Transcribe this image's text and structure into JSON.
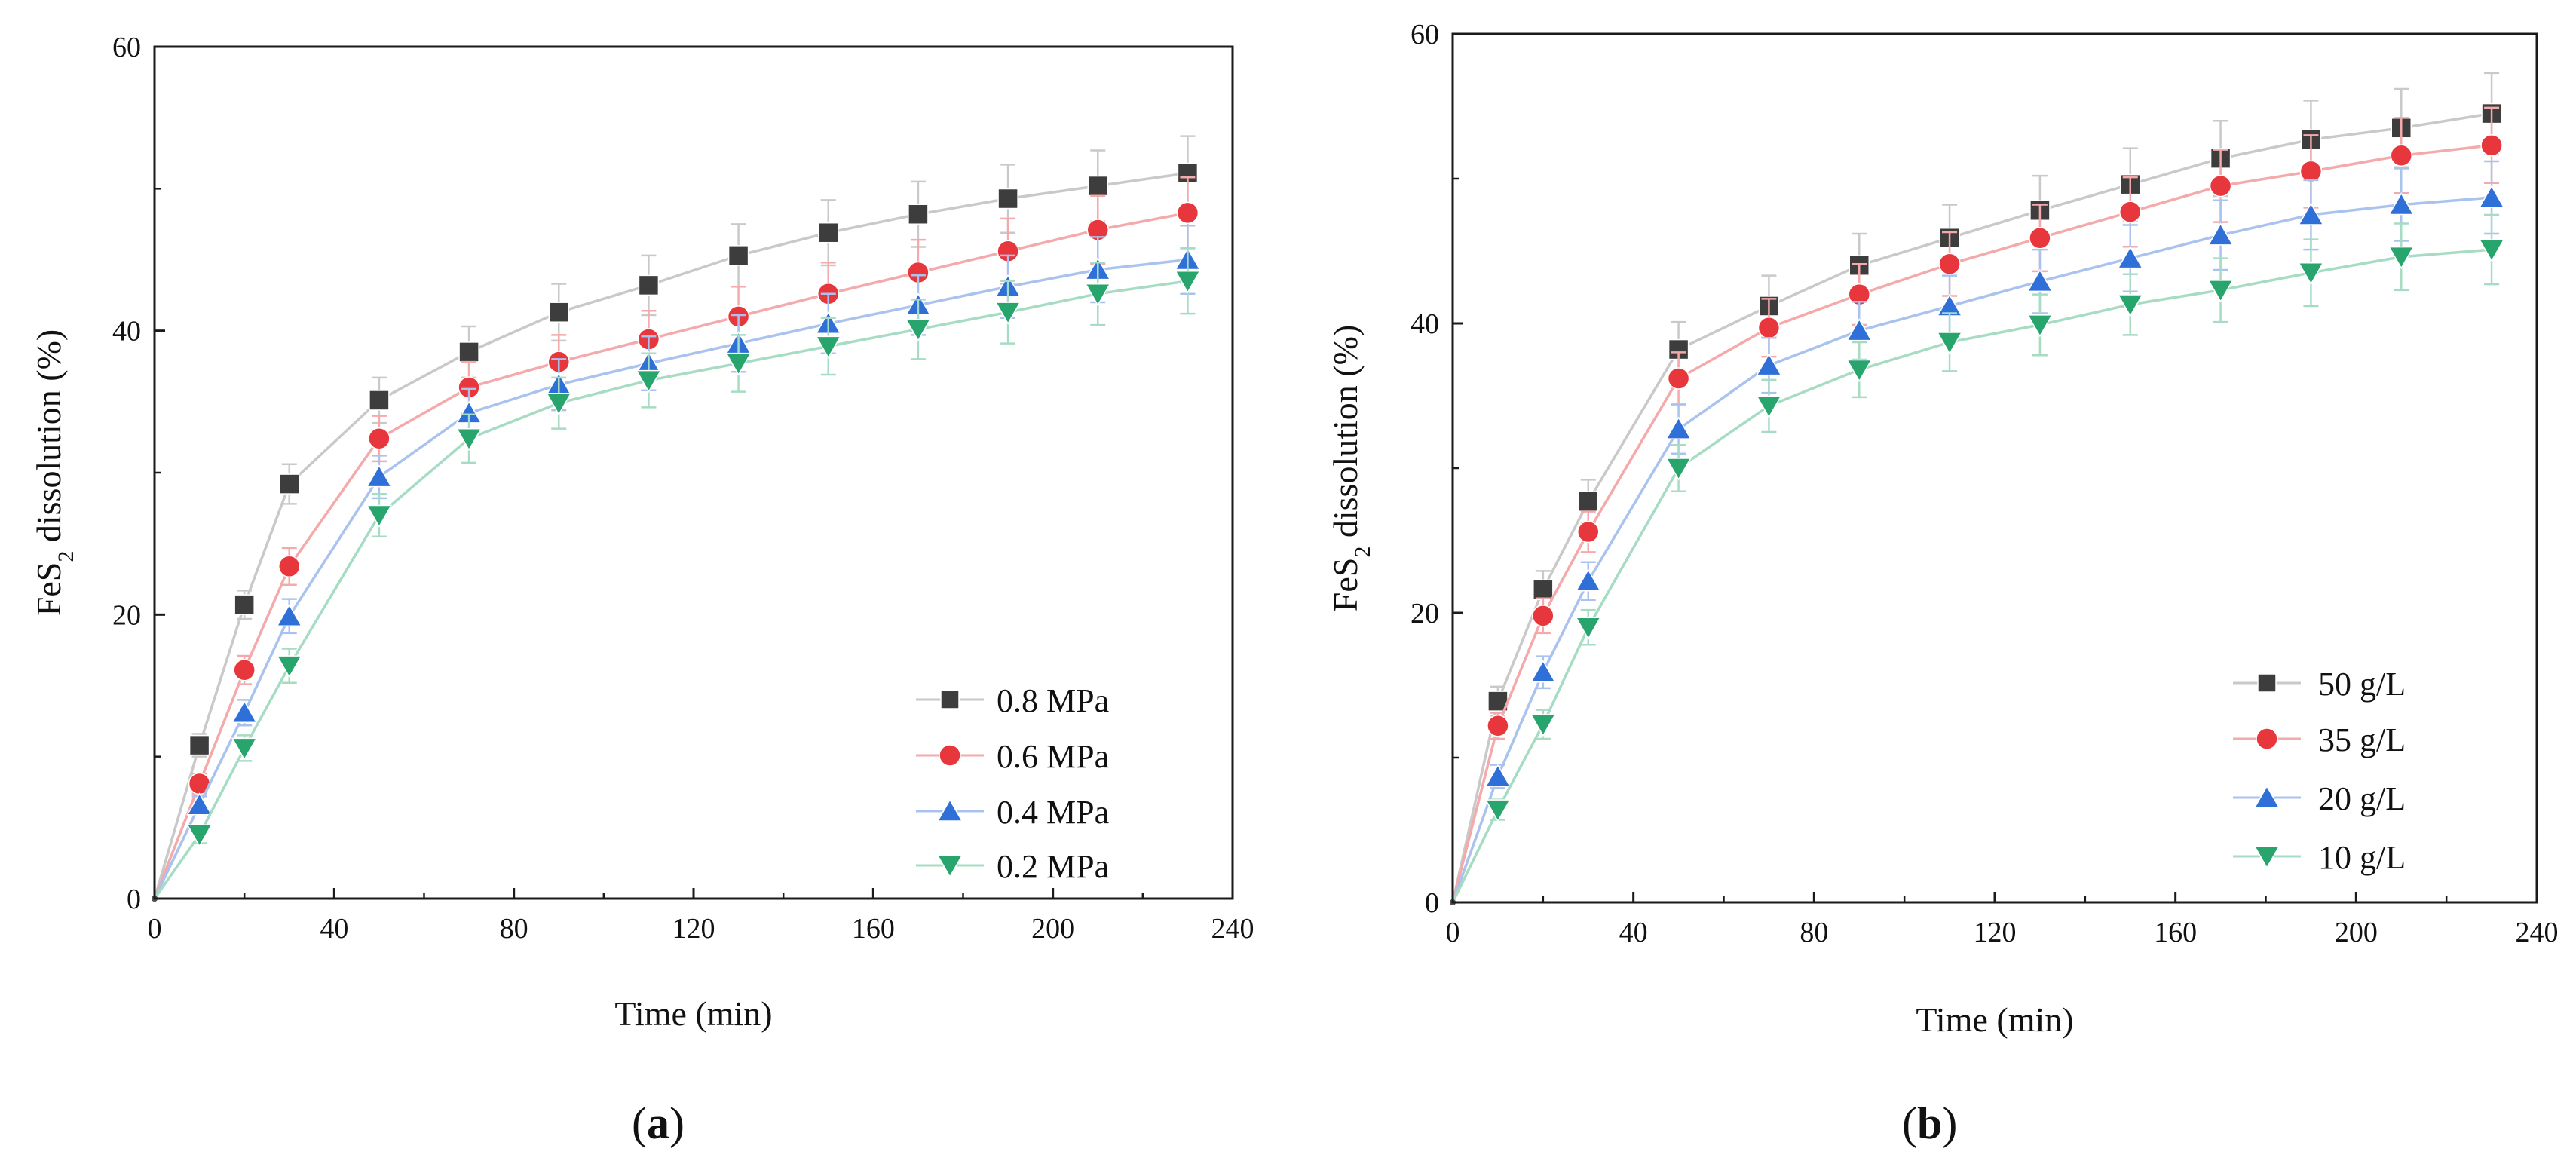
{
  "chart_data": [
    {
      "type": "line",
      "panel_label": "(a)",
      "panel_letter": "a",
      "title": "",
      "xlabel": "Time (min)",
      "ylabel_prefix": "FeS",
      "ylabel_sub": "2",
      "ylabel_suffix": " dissolution (%)",
      "xlim": [
        0,
        240
      ],
      "ylim": [
        0,
        60
      ],
      "xticks": [
        0,
        40,
        80,
        120,
        160,
        200,
        240
      ],
      "yticks": [
        0,
        20,
        40,
        60
      ],
      "x_tick_labels": [
        "0",
        "40",
        "80",
        "120",
        "160",
        "200",
        "240"
      ],
      "y_tick_labels": [
        "0",
        "20",
        "40",
        "60"
      ],
      "grid": false,
      "legend_position": "lower-right",
      "x": [
        0,
        10,
        20,
        30,
        50,
        70,
        90,
        110,
        130,
        150,
        170,
        190,
        210,
        230
      ],
      "series": [
        {
          "name": "0.8 MPa",
          "marker": "square",
          "color": "#3d3d3d",
          "line_color": "#c9c9c9",
          "values": [
            0,
            10.8,
            20.7,
            29.2,
            35.1,
            38.5,
            41.3,
            43.2,
            45.3,
            46.9,
            48.2,
            49.3,
            50.2,
            51.1
          ],
          "errors": [
            0,
            0.8,
            1.0,
            1.4,
            1.6,
            1.8,
            2.0,
            2.1,
            2.2,
            2.3,
            2.3,
            2.4,
            2.5,
            2.6
          ]
        },
        {
          "name": "0.6 MPa",
          "marker": "circle",
          "color": "#e8373c",
          "line_color": "#f4a9ab",
          "values": [
            0,
            8.1,
            16.1,
            23.4,
            32.4,
            36.0,
            37.8,
            39.4,
            41.0,
            42.6,
            44.1,
            45.6,
            47.1,
            48.3
          ],
          "errors": [
            0,
            0.7,
            1.0,
            1.3,
            1.6,
            1.8,
            1.9,
            2.0,
            2.1,
            2.2,
            2.3,
            2.3,
            2.4,
            2.5
          ]
        },
        {
          "name": "0.4 MPa",
          "marker": "triangle-up",
          "color": "#2f6fd8",
          "line_color": "#a9c3ee",
          "values": [
            0,
            6.6,
            13.1,
            19.9,
            29.7,
            34.2,
            36.2,
            37.7,
            39.1,
            40.5,
            41.8,
            43.1,
            44.3,
            45.0
          ],
          "errors": [
            0,
            0.6,
            0.9,
            1.2,
            1.5,
            1.7,
            1.8,
            1.9,
            2.0,
            2.1,
            2.1,
            2.2,
            2.3,
            2.4
          ]
        },
        {
          "name": "0.2 MPa",
          "marker": "triangle-down",
          "color": "#27a56c",
          "line_color": "#a6dcc3",
          "values": [
            0,
            4.5,
            10.6,
            16.4,
            27.0,
            32.4,
            34.9,
            36.5,
            37.7,
            38.9,
            40.1,
            41.3,
            42.6,
            43.5
          ],
          "errors": [
            0,
            0.6,
            0.9,
            1.2,
            1.5,
            1.7,
            1.8,
            1.9,
            2.0,
            2.0,
            2.1,
            2.2,
            2.2,
            2.3
          ]
        }
      ]
    },
    {
      "type": "line",
      "panel_label": "(b)",
      "panel_letter": "b",
      "title": "",
      "xlabel": "Time (min)",
      "ylabel_prefix": "FeS",
      "ylabel_sub": "2",
      "ylabel_suffix": " dissolution (%)",
      "xlim": [
        0,
        240
      ],
      "ylim": [
        0,
        60
      ],
      "xticks": [
        0,
        40,
        80,
        120,
        160,
        200,
        240
      ],
      "yticks": [
        0,
        20,
        40,
        60
      ],
      "x_tick_labels": [
        "0",
        "40",
        "80",
        "120",
        "160",
        "200",
        "240"
      ],
      "y_tick_labels": [
        "0",
        "20",
        "40",
        "60"
      ],
      "grid": false,
      "legend_position": "lower-right",
      "x": [
        0,
        10,
        20,
        30,
        50,
        70,
        90,
        110,
        130,
        150,
        170,
        190,
        210,
        230
      ],
      "series": [
        {
          "name": "50 g/L",
          "marker": "square",
          "color": "#3d3d3d",
          "line_color": "#c9c9c9",
          "values": [
            0,
            13.9,
            21.6,
            27.7,
            38.2,
            41.2,
            44.0,
            45.9,
            47.8,
            49.6,
            51.4,
            52.7,
            53.5,
            54.5
          ],
          "errors": [
            0,
            1.0,
            1.3,
            1.5,
            1.9,
            2.1,
            2.2,
            2.3,
            2.4,
            2.5,
            2.6,
            2.7,
            2.7,
            2.8
          ]
        },
        {
          "name": "35 g/L",
          "marker": "circle",
          "color": "#e8373c",
          "line_color": "#f4a9ab",
          "values": [
            0,
            12.2,
            19.8,
            25.6,
            36.2,
            39.7,
            42.0,
            44.1,
            45.9,
            47.7,
            49.5,
            50.5,
            51.6,
            52.3
          ],
          "errors": [
            0,
            0.9,
            1.2,
            1.4,
            1.8,
            2.0,
            2.1,
            2.2,
            2.3,
            2.4,
            2.5,
            2.5,
            2.6,
            2.6
          ]
        },
        {
          "name": "20 g/L",
          "marker": "triangle-up",
          "color": "#2f6fd8",
          "line_color": "#a9c3ee",
          "values": [
            0,
            8.7,
            15.9,
            22.2,
            32.7,
            37.1,
            39.5,
            41.2,
            42.9,
            44.5,
            46.1,
            47.5,
            48.2,
            48.7
          ],
          "errors": [
            0,
            0.8,
            1.1,
            1.3,
            1.7,
            1.9,
            2.0,
            2.1,
            2.2,
            2.3,
            2.4,
            2.4,
            2.5,
            2.5
          ]
        },
        {
          "name": "10 g/L",
          "marker": "triangle-down",
          "color": "#27a56c",
          "line_color": "#a6dcc3",
          "values": [
            0,
            6.4,
            12.3,
            19.0,
            30.0,
            34.3,
            36.8,
            38.7,
            39.9,
            41.3,
            42.3,
            43.5,
            44.6,
            45.1
          ],
          "errors": [
            0,
            0.7,
            1.0,
            1.2,
            1.6,
            1.8,
            1.9,
            2.0,
            2.1,
            2.1,
            2.2,
            2.3,
            2.3,
            2.4
          ]
        }
      ]
    }
  ]
}
